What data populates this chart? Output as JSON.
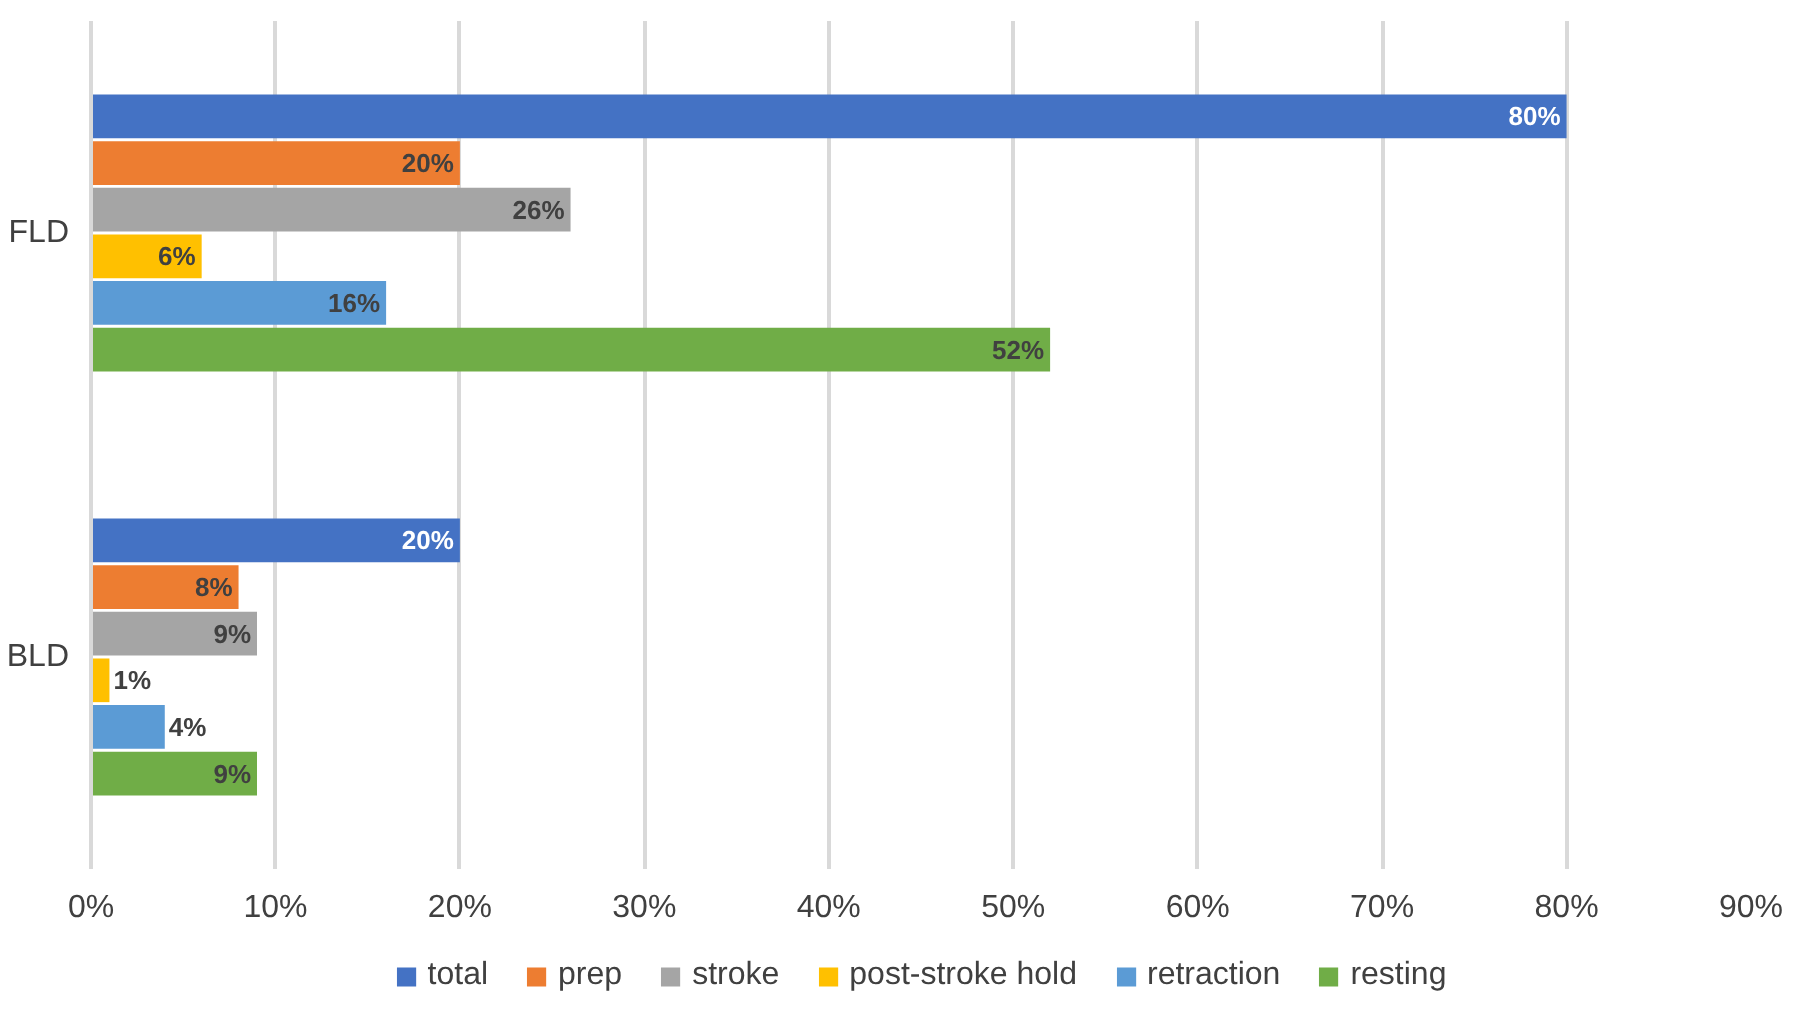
{
  "chart_data": {
    "type": "bar",
    "orientation": "horizontal",
    "categories": [
      "FLD",
      "BLD"
    ],
    "series": [
      {
        "name": "total",
        "color": "#4472c4",
        "values": [
          80,
          20
        ],
        "value_labels": [
          "80%",
          "20%"
        ]
      },
      {
        "name": "prep",
        "color": "#ed7d31",
        "values": [
          20,
          8
        ],
        "value_labels": [
          "20%",
          "8%"
        ]
      },
      {
        "name": "stroke",
        "color": "#a5a5a5",
        "values": [
          26,
          9
        ],
        "value_labels": [
          "26%",
          "9%"
        ]
      },
      {
        "name": "post-stroke hold",
        "color": "#ffc000",
        "values": [
          6,
          1
        ],
        "value_labels": [
          "6%",
          "1%"
        ]
      },
      {
        "name": "retraction",
        "color": "#5b9bd5",
        "values": [
          16,
          4
        ],
        "value_labels": [
          "16%",
          "4%"
        ]
      },
      {
        "name": "resting",
        "color": "#70ad47",
        "values": [
          52,
          9
        ],
        "value_labels": [
          "52%",
          "9%"
        ]
      }
    ],
    "xlim": [
      0,
      90
    ],
    "xticks": [
      {
        "value": 0,
        "label": "0%"
      },
      {
        "value": 10,
        "label": "10%"
      },
      {
        "value": 20,
        "label": "20%"
      },
      {
        "value": 30,
        "label": "30%"
      },
      {
        "value": 40,
        "label": "40%"
      },
      {
        "value": 50,
        "label": "50%"
      },
      {
        "value": 60,
        "label": "60%"
      },
      {
        "value": 70,
        "label": "70%"
      },
      {
        "value": 80,
        "label": "80%"
      },
      {
        "value": 90,
        "label": "90%"
      }
    ],
    "grid": "x",
    "legend": "bottom"
  }
}
